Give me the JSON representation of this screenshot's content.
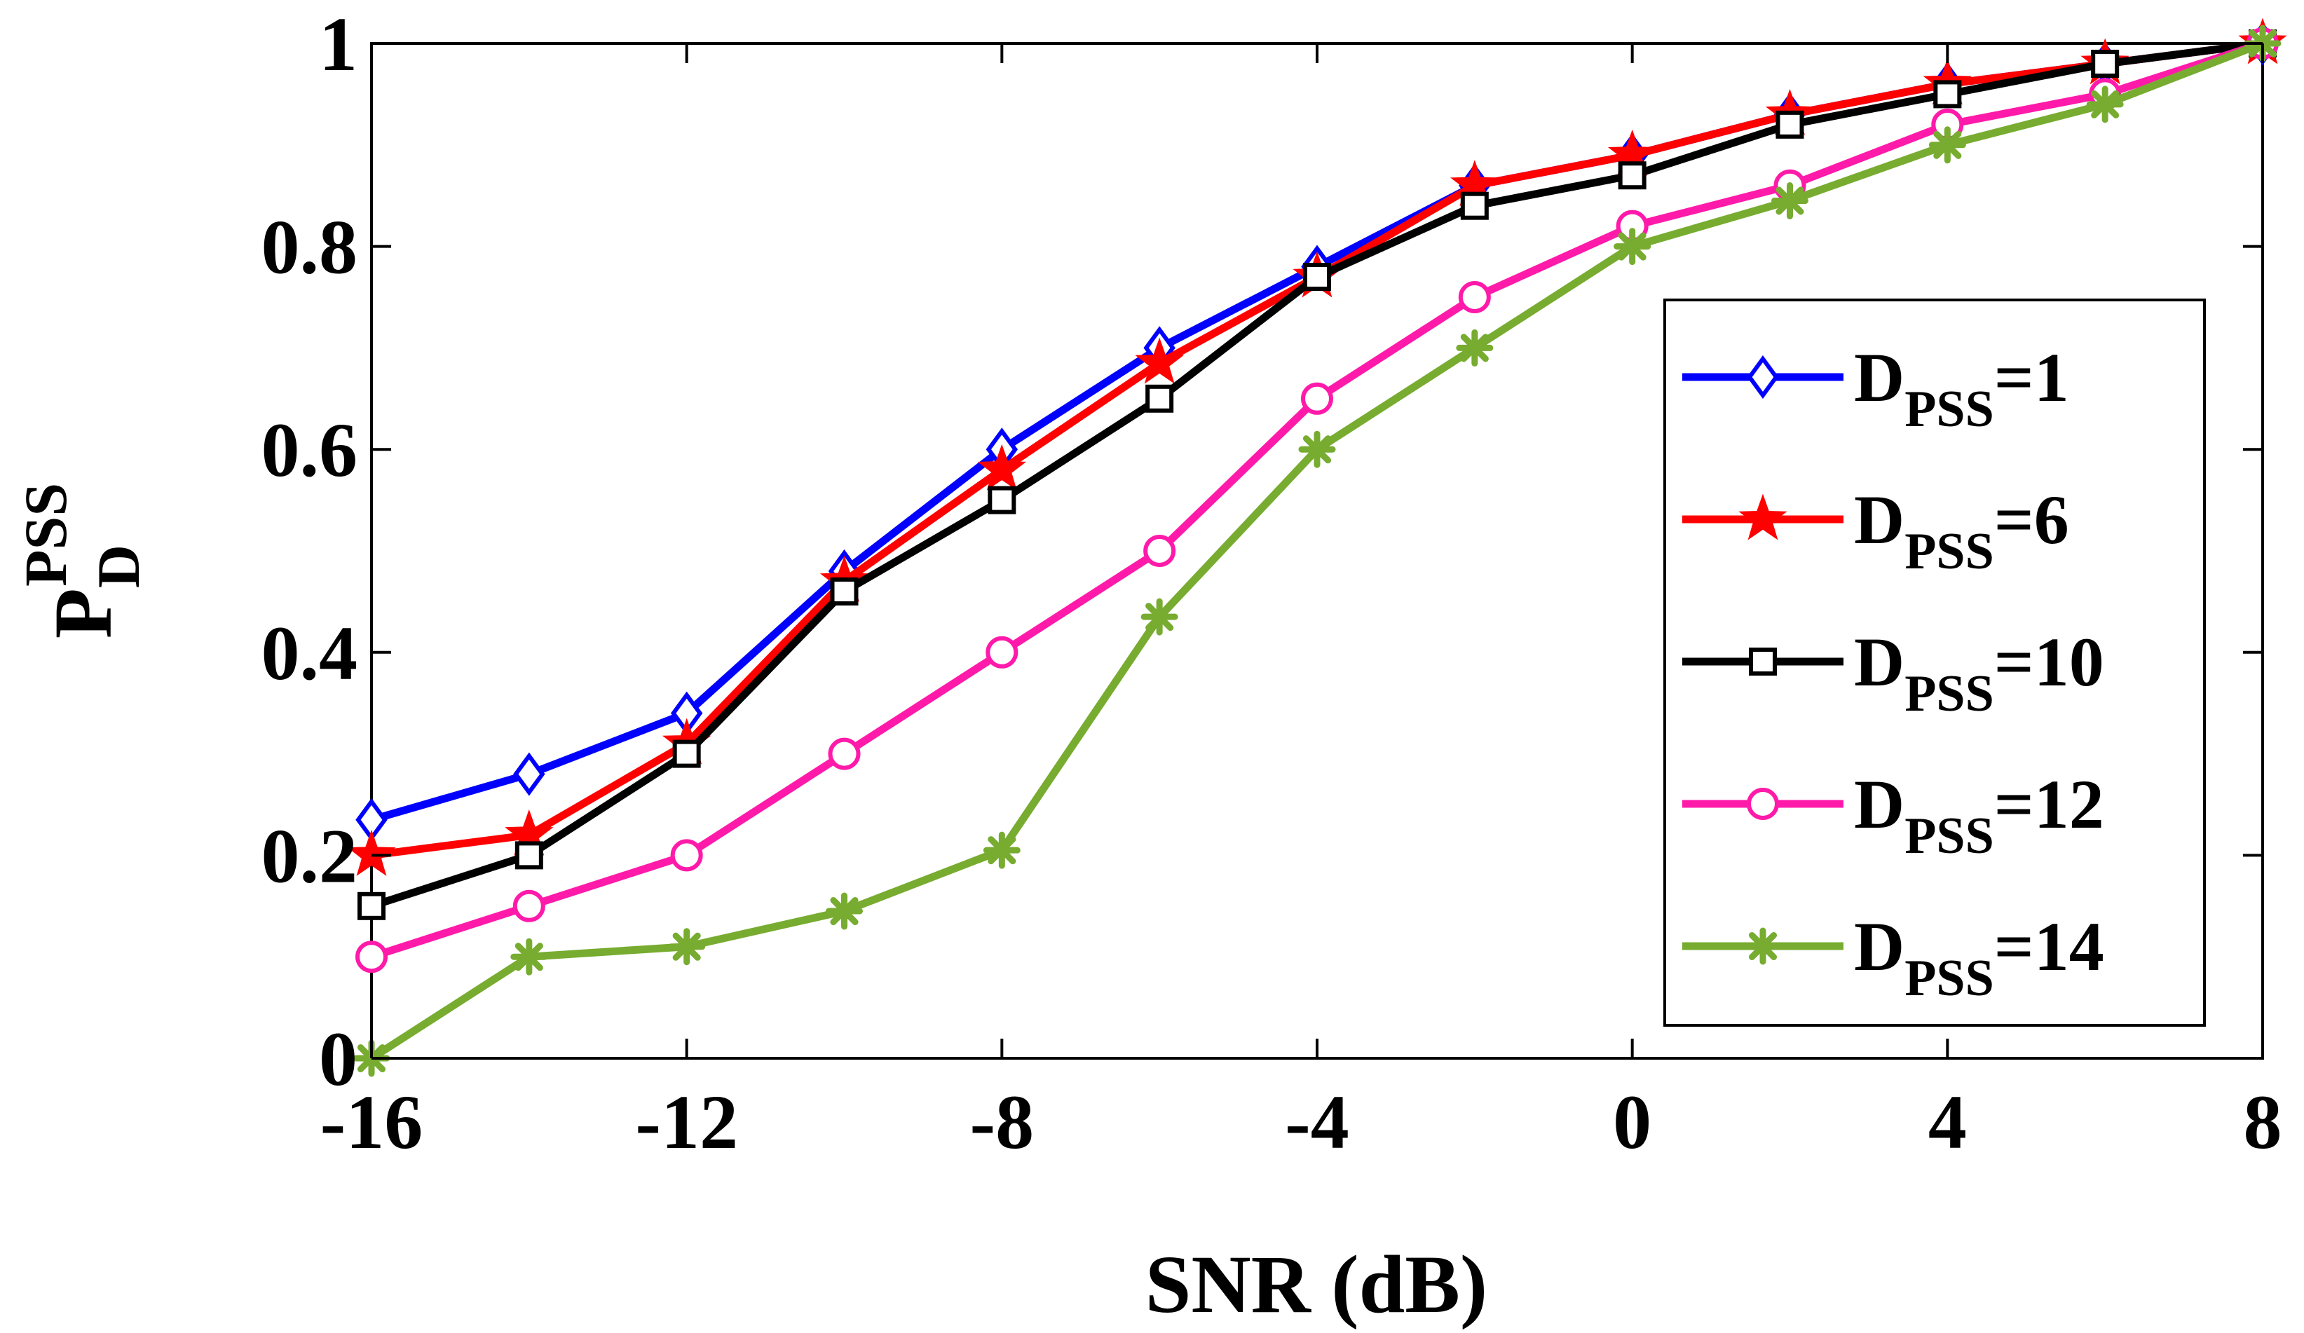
{
  "chart_data": {
    "type": "line",
    "title": "",
    "xlabel": "SNR (dB)",
    "ylabel": {
      "main": "P",
      "sub": "D",
      "sup": "PSS"
    },
    "x": [
      -16,
      -14,
      -12,
      -10,
      -8,
      -6,
      -4,
      -2,
      0,
      2,
      4,
      6,
      8
    ],
    "xlim": [
      -16,
      8
    ],
    "ylim": [
      0,
      1
    ],
    "xticks": [
      -16,
      -12,
      -8,
      -4,
      0,
      4,
      8
    ],
    "xtick_labels": [
      "-16",
      "-12",
      "-8",
      "-4",
      "0",
      "4",
      "8"
    ],
    "yticks": [
      0,
      0.2,
      0.4,
      0.6,
      0.8,
      1
    ],
    "ytick_labels": [
      "0",
      "0.2",
      "0.4",
      "0.6",
      "0.8",
      "1"
    ],
    "grid": false,
    "legend_position": "right",
    "series": [
      {
        "label_main": "D",
        "label_sub": "PSS",
        "label_value": "=1",
        "color": "#0000ff",
        "marker": "diamond",
        "values": [
          0.235,
          0.28,
          0.34,
          0.48,
          0.6,
          0.7,
          0.78,
          0.86,
          0.89,
          0.93,
          0.96,
          0.98,
          1.0
        ]
      },
      {
        "label_main": "D",
        "label_sub": "PSS",
        "label_value": "=6",
        "color": "#ff0000",
        "marker": "star",
        "values": [
          0.2,
          0.22,
          0.31,
          0.47,
          0.58,
          0.685,
          0.77,
          0.86,
          0.89,
          0.93,
          0.96,
          0.98,
          1.0
        ]
      },
      {
        "label_main": "D",
        "label_sub": "PSS",
        "label_value": "=10",
        "color": "#000000",
        "marker": "square",
        "values": [
          0.15,
          0.2,
          0.3,
          0.46,
          0.55,
          0.65,
          0.77,
          0.84,
          0.87,
          0.92,
          0.95,
          0.98,
          1.0
        ]
      },
      {
        "label_main": "D",
        "label_sub": "PSS",
        "label_value": "=12",
        "color": "#ff1aaa",
        "marker": "circle",
        "values": [
          0.1,
          0.15,
          0.2,
          0.3,
          0.4,
          0.5,
          0.65,
          0.75,
          0.82,
          0.86,
          0.92,
          0.95,
          1.0
        ]
      },
      {
        "label_main": "D",
        "label_sub": "PSS",
        "label_value": "=14",
        "color": "#77ac30",
        "marker": "asterisk",
        "values": [
          0.0,
          0.1,
          0.11,
          0.145,
          0.205,
          0.435,
          0.6,
          0.7,
          0.8,
          0.845,
          0.9,
          0.94,
          1.0
        ]
      }
    ]
  }
}
